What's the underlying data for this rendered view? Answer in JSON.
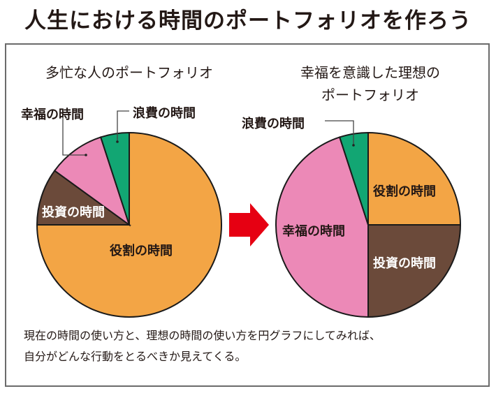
{
  "title": "人生における時間のポートフォリオを作ろう",
  "caption_lines": [
    "現在の時間の使い方と、理想の時間の使い方を円グラフにしてみれば、",
    "自分がどんな行動をとるべきか見えてくる。"
  ],
  "colors": {
    "役割の時間": "#f3a545",
    "投資の時間": "#6b4a3a",
    "幸福の時間": "#ec89b7",
    "浪費の時間": "#12a673",
    "arrow": "#e60012"
  },
  "chart_data": [
    {
      "type": "pie",
      "title": "多忙な人のポートフォリオ",
      "labels": [
        "役割の時間",
        "投資の時間",
        "幸福の時間",
        "浪費の時間"
      ],
      "values": [
        75,
        10,
        10,
        5
      ],
      "start": "12 o'clock, clockwise"
    },
    {
      "type": "pie",
      "title_lines": [
        "幸福を意識した理想の",
        "ポートフォリオ"
      ],
      "labels": [
        "役割の時間",
        "投資の時間",
        "幸福の時間",
        "浪費の時間"
      ],
      "values": [
        25,
        25,
        45,
        5
      ],
      "start": "12 o'clock, clockwise"
    }
  ]
}
